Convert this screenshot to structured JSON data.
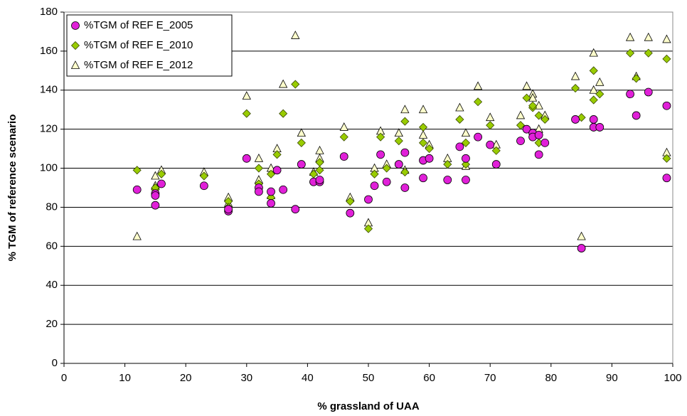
{
  "chart_data": {
    "type": "scatter",
    "x_label": "% grassland of UAA",
    "y_label": "% TGM of reference scenario",
    "xlim": [
      0,
      100
    ],
    "xticks": [
      0,
      10,
      20,
      30,
      40,
      50,
      60,
      70,
      80,
      90,
      100
    ],
    "ylim": [
      0,
      180
    ],
    "yticks": [
      0,
      20,
      40,
      60,
      80,
      100,
      120,
      140,
      160,
      180
    ],
    "grid": true,
    "legend": "upper left",
    "series": [
      {
        "name": "%TGM of REF E_2005",
        "color": "#e020d8",
        "marker": "circle",
        "x": [
          12,
          15,
          15,
          15,
          16,
          23,
          27,
          27,
          30,
          32,
          32,
          34,
          34,
          35,
          36,
          38,
          39,
          41,
          42,
          42,
          46,
          47,
          50,
          51,
          52,
          53,
          55,
          56,
          56,
          59,
          59,
          60,
          63,
          65,
          66,
          66,
          68,
          70,
          71,
          75,
          76,
          77,
          77,
          78,
          78,
          79,
          84,
          85,
          87,
          87,
          88,
          93,
          94,
          96,
          99,
          99
        ],
        "values": [
          89,
          87,
          86,
          81,
          92,
          91,
          78,
          79,
          105,
          90,
          88,
          88,
          82,
          99,
          89,
          79,
          102,
          93,
          93,
          94,
          106,
          77,
          84,
          91,
          107,
          93,
          102,
          108,
          90,
          95,
          104,
          105,
          94,
          111,
          105,
          94,
          116,
          112,
          102,
          114,
          120,
          118,
          116,
          107,
          117,
          113,
          125,
          59,
          125,
          121,
          121,
          138,
          127,
          139,
          132,
          95
        ]
      },
      {
        "name": "%TGM of REF E_2010",
        "color": "#99cc00",
        "marker": "diamond",
        "x": [
          12,
          15,
          15,
          16,
          23,
          27,
          27,
          30,
          32,
          32,
          34,
          34,
          35,
          36,
          38,
          39,
          41,
          42,
          42,
          46,
          47,
          50,
          51,
          52,
          53,
          55,
          56,
          56,
          59,
          59,
          60,
          63,
          65,
          66,
          66,
          68,
          70,
          71,
          75,
          76,
          77,
          77,
          78,
          78,
          79,
          84,
          85,
          87,
          87,
          88,
          93,
          94,
          96,
          99,
          99
        ],
        "values": [
          99,
          89,
          90,
          97,
          96,
          83,
          80,
          128,
          100,
          92,
          97,
          85,
          107,
          128,
          143,
          113,
          97,
          99,
          103,
          116,
          83,
          69,
          97,
          116,
          100,
          114,
          124,
          98,
          121,
          113,
          110,
          102,
          125,
          113,
          102,
          134,
          122,
          109,
          122,
          136,
          131,
          132,
          113,
          127,
          125,
          141,
          126,
          150,
          135,
          138,
          159,
          146,
          159,
          156,
          105
        ]
      },
      {
        "name": "%TGM of REF E_2012",
        "color": "#ffffcc",
        "marker": "triangle",
        "x": [
          12,
          15,
          15,
          16,
          23,
          27,
          27,
          30,
          32,
          32,
          34,
          34,
          35,
          36,
          38,
          39,
          41,
          42,
          42,
          46,
          47,
          50,
          51,
          52,
          53,
          55,
          56,
          56,
          59,
          59,
          60,
          63,
          65,
          66,
          66,
          68,
          70,
          71,
          75,
          76,
          77,
          77,
          78,
          78,
          79,
          84,
          85,
          87,
          87,
          88,
          93,
          94,
          96,
          99,
          99
        ],
        "values": [
          65,
          96,
          91,
          99,
          98,
          85,
          82,
          137,
          105,
          94,
          100,
          86,
          110,
          143,
          168,
          118,
          98,
          109,
          105,
          121,
          85,
          72,
          100,
          119,
          102,
          118,
          130,
          99,
          130,
          117,
          112,
          105,
          131,
          118,
          101,
          142,
          126,
          112,
          127,
          142,
          138,
          136,
          120,
          132,
          127,
          147,
          65,
          159,
          140,
          144,
          167,
          147,
          167,
          166,
          108
        ]
      }
    ]
  }
}
